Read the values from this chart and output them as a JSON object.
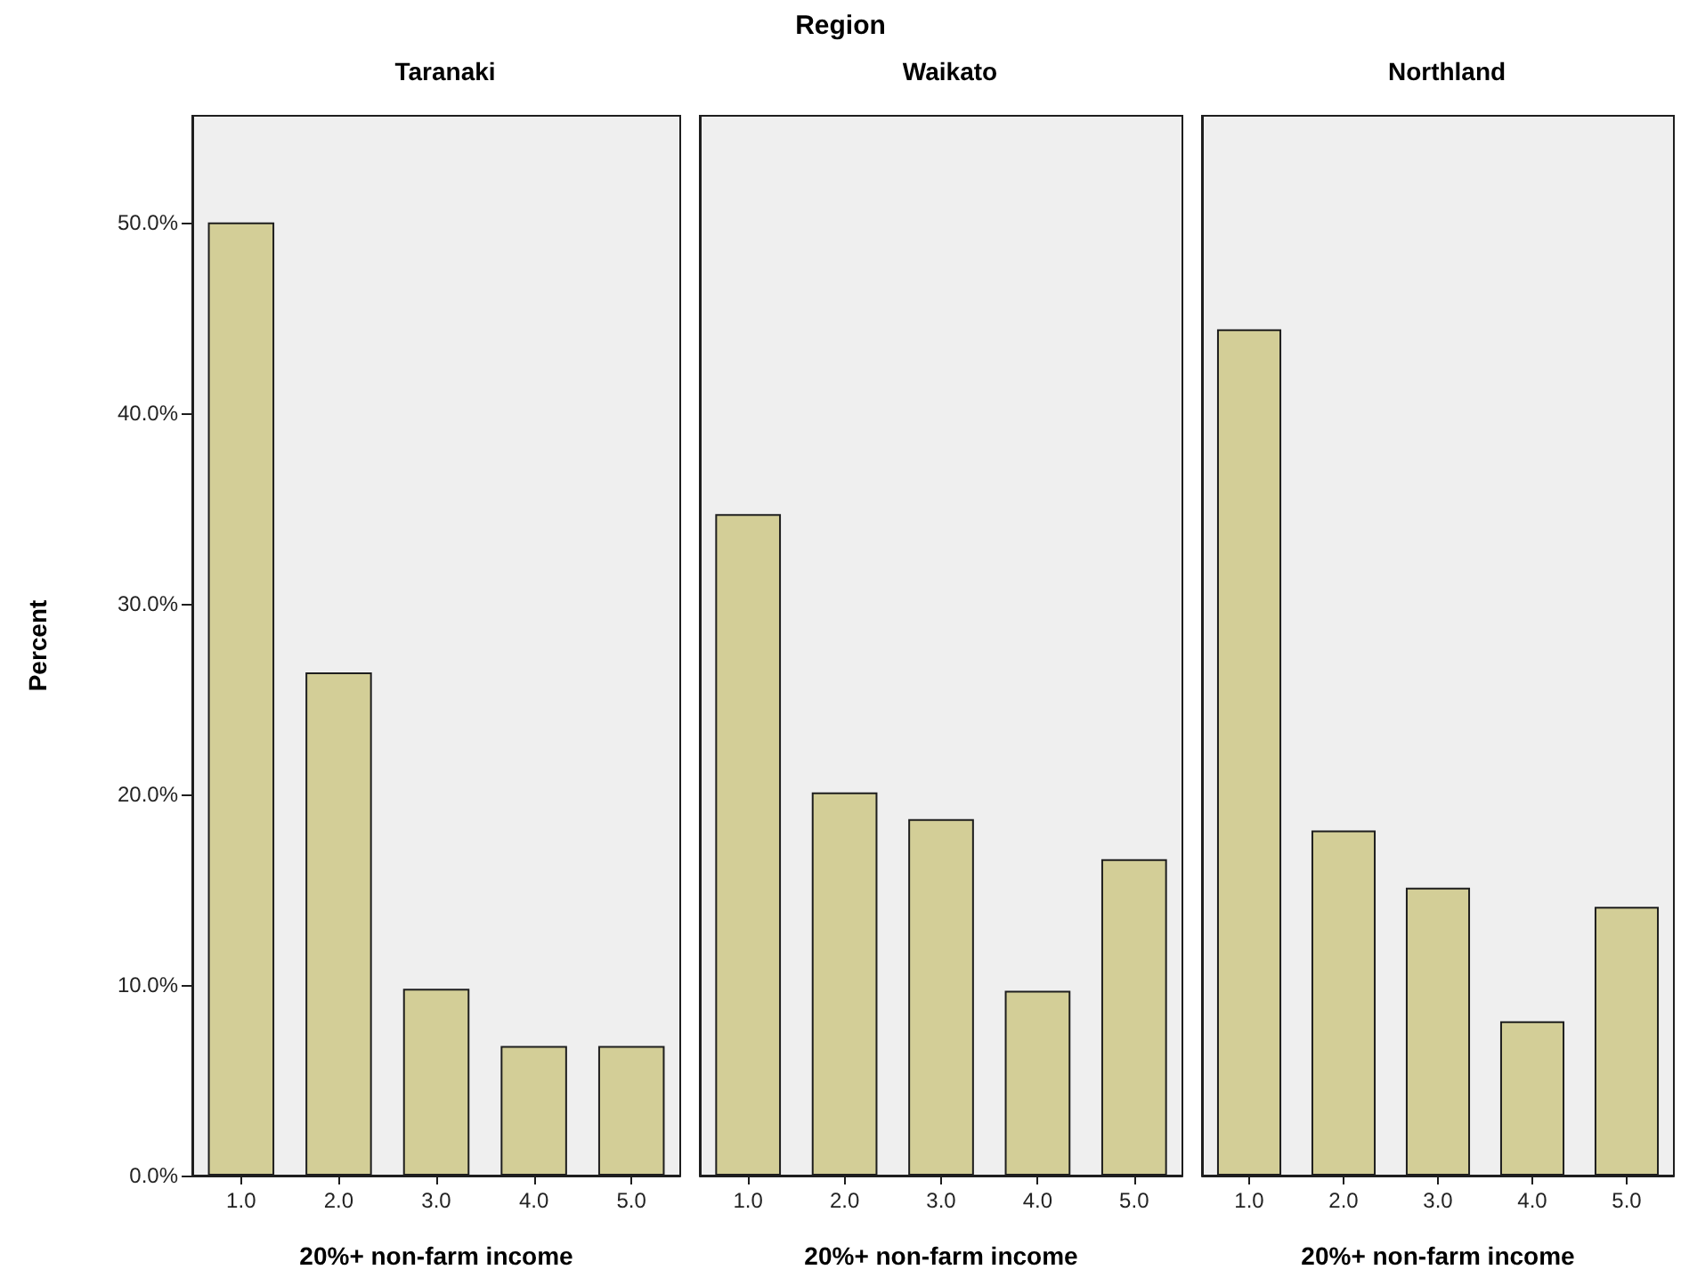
{
  "chart_data": [
    {
      "type": "bar",
      "title": "Taranaki",
      "xlabel": "20%+ non-farm income",
      "ylabel": "Percent",
      "annotations": [
        "Region"
      ],
      "categories": [
        "1.0",
        "2.0",
        "3.0",
        "4.0",
        "5.0"
      ],
      "values": [
        50.0,
        26.4,
        9.8,
        6.8,
        6.8
      ],
      "color": "#d3ce97",
      "ylim": [
        0,
        55.6
      ],
      "yticks": [
        {
          "value": 0,
          "label": "0.0%"
        },
        {
          "value": 10,
          "label": "10.0%"
        },
        {
          "value": 20,
          "label": "20.0%"
        },
        {
          "value": 30,
          "label": "30.0%"
        },
        {
          "value": 40,
          "label": "40.0%"
        },
        {
          "value": 50,
          "label": "50.0%"
        }
      ],
      "grid": false
    },
    {
      "type": "bar",
      "title": "Waikato",
      "xlabel": "20%+ non-farm income",
      "categories": [
        "1.0",
        "2.0",
        "3.0",
        "4.0",
        "5.0"
      ],
      "values": [
        34.7,
        20.1,
        18.7,
        9.7,
        16.6
      ],
      "color": "#d3ce97",
      "ylim": [
        0,
        55.6
      ],
      "tick_labels": "x",
      "grid": false
    },
    {
      "type": "bar",
      "title": "Northland",
      "xlabel": "20%+ non-farm income",
      "categories": [
        "1.0",
        "2.0",
        "3.0",
        "4.0",
        "5.0"
      ],
      "values": [
        44.4,
        18.1,
        15.1,
        8.1,
        14.1
      ],
      "color": "#d3ce97",
      "ylim": [
        0,
        55.6
      ],
      "tick_labels": "x",
      "grid": false
    }
  ]
}
